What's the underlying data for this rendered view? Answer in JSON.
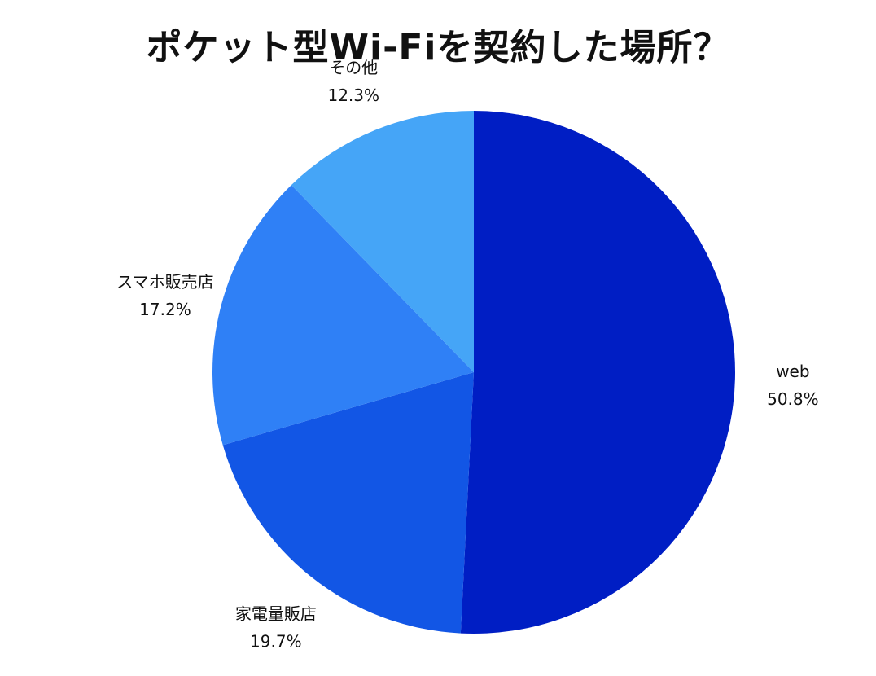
{
  "chart_data": {
    "type": "pie",
    "title": "ポケット型Wi-Fiを契約した場所？",
    "start_angle_deg": 0,
    "direction": "clockwise",
    "slices": [
      {
        "label": "web",
        "value": 50.8,
        "value_label": "50.8%",
        "color": "#001EC4"
      },
      {
        "label": "家電量販店",
        "value": 19.7,
        "value_label": "19.7%",
        "color": "#1256E5"
      },
      {
        "label": "スマホ販売店",
        "value": 17.2,
        "value_label": "17.2%",
        "color": "#2F80F6"
      },
      {
        "label": "その他",
        "value": 12.3,
        "value_label": "12.3%",
        "color": "#45A5F7"
      }
    ],
    "legend": "none"
  }
}
